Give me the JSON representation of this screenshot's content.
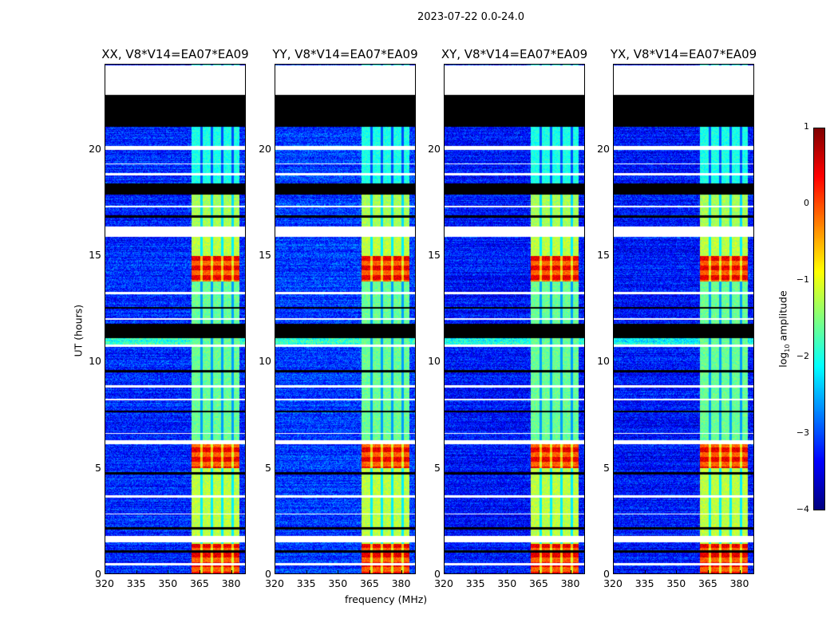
{
  "chart_data": {
    "type": "heatmap",
    "title": "2023-07-22 0.0-24.0",
    "xlabel": "frequency (MHz)",
    "ylabel": "UT (hours)",
    "xlim": [
      320,
      387
    ],
    "ylim": [
      0,
      24
    ],
    "xticks": [
      "320",
      "335",
      "350",
      "365",
      "380"
    ],
    "xtick_values": [
      320,
      335,
      350,
      365,
      380
    ],
    "yticks": [
      "0",
      "5",
      "10",
      "15",
      "20"
    ],
    "ytick_values": [
      0,
      5,
      10,
      15,
      20
    ],
    "panels": [
      {
        "title": "XX, V8*V14=EA07*EA09",
        "background": -3.2
      },
      {
        "title": "YY, V8*V14=EA07*EA09",
        "background": -3.1
      },
      {
        "title": "XY, V8*V14=EA07*EA09",
        "background": -3.3
      },
      {
        "title": "YX, V8*V14=EA07*EA09",
        "background": -3.3
      }
    ],
    "rfi_band_MHz": [
      361,
      384
    ],
    "rfi_band_gaps_MHz": [
      366,
      371,
      376,
      381
    ],
    "strong_rfi_hours": [
      [
        13.8,
        15.0
      ],
      [
        5.0,
        6.2
      ],
      [
        0,
        1.4
      ]
    ],
    "no_data_hours": [
      [
        22.6,
        24
      ]
    ],
    "flagged_black_hours": [
      [
        21.1,
        22.6
      ],
      [
        17.9,
        18.4
      ],
      [
        11.1,
        11.8
      ],
      [
        9.5,
        9.6
      ],
      [
        7.6,
        7.7
      ],
      [
        4.7,
        4.8
      ],
      [
        2.1,
        2.2
      ],
      [
        1.0,
        1.1
      ],
      [
        12.5,
        12.6
      ],
      [
        16.8,
        16.9
      ]
    ],
    "flagged_white_hours": [
      [
        20.0,
        20.2
      ],
      [
        15.9,
        16.4
      ],
      [
        6.1,
        6.3
      ],
      [
        1.5,
        1.8
      ],
      [
        18.8,
        18.9
      ],
      [
        13.2,
        13.3
      ],
      [
        10.7,
        10.8
      ],
      [
        8.8,
        8.9
      ],
      [
        3.6,
        3.7
      ],
      [
        0.4,
        0.5
      ],
      [
        19.3,
        19.35
      ],
      [
        17.3,
        17.35
      ],
      [
        12.0,
        12.05
      ],
      [
        8.2,
        8.25
      ],
      [
        6.6,
        6.65
      ],
      [
        2.8,
        2.85
      ]
    ],
    "colorbar": {
      "label": "log10 amplitude",
      "label_main": "log",
      "label_sub": "10",
      "label_rest": " amplitude",
      "range": [
        -4,
        1
      ],
      "ticks": [
        "−4",
        "−3",
        "−2",
        "−1",
        "0",
        "1"
      ],
      "tick_values": [
        -4,
        -3,
        -2,
        -1,
        0,
        1
      ]
    }
  }
}
